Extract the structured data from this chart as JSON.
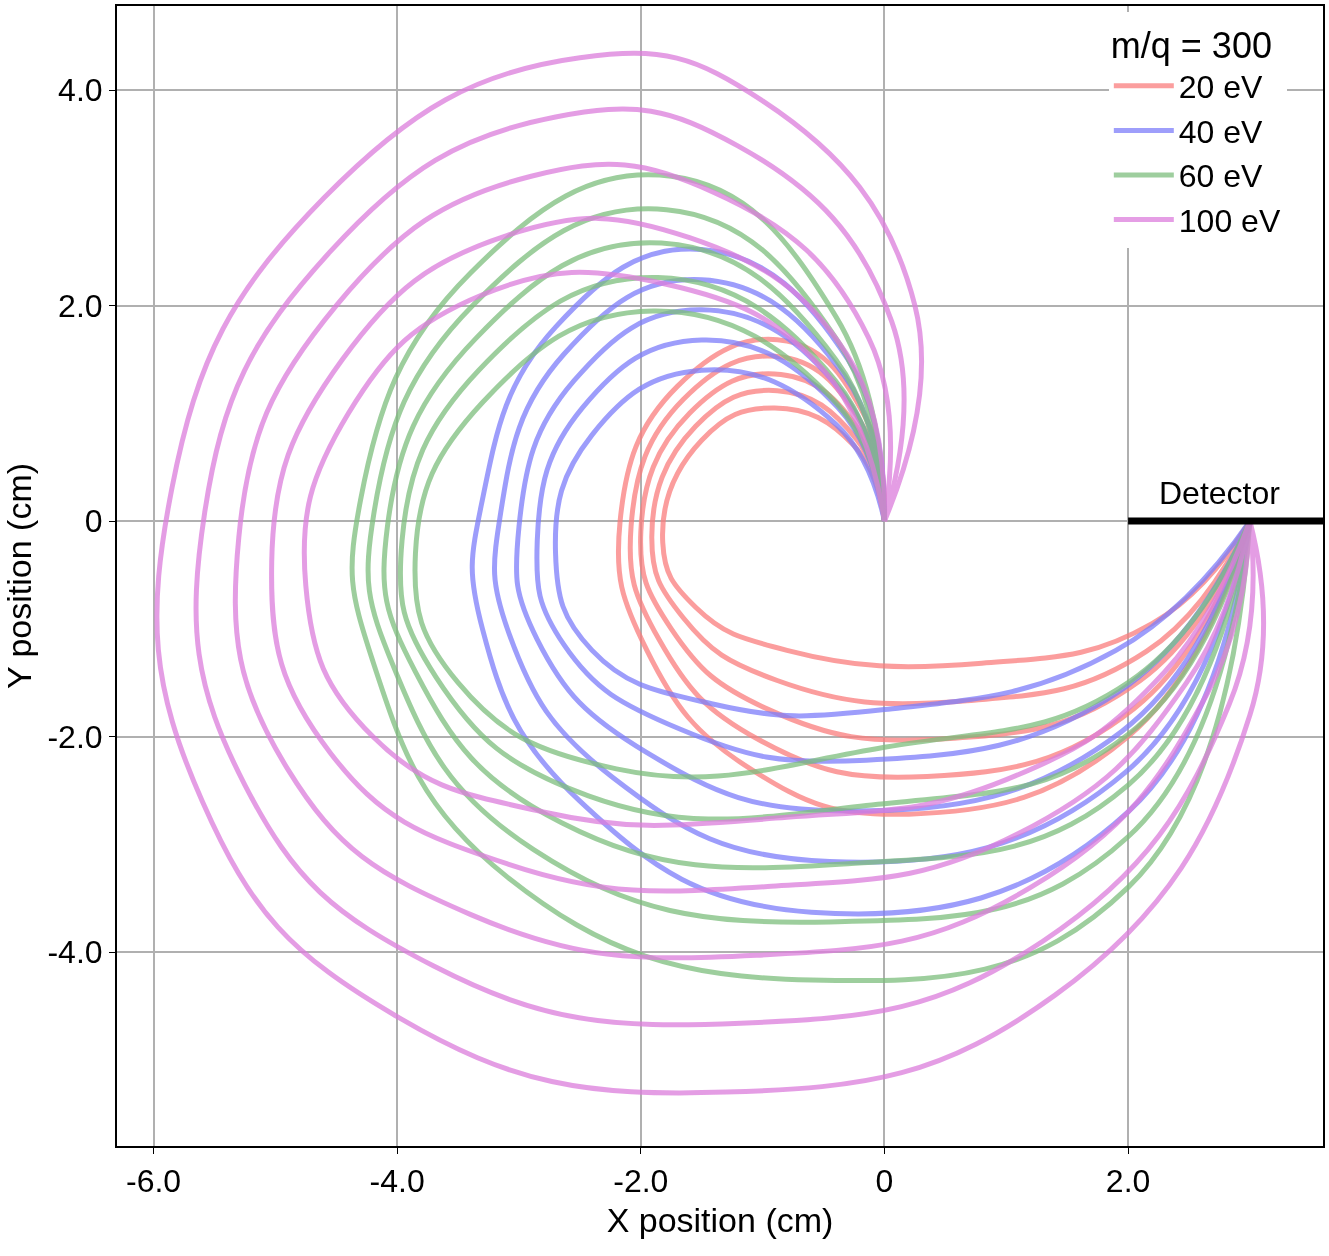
{
  "chart_data": {
    "type": "line",
    "xlabel": "X position (cm)",
    "ylabel": "Y position (cm)",
    "legend_title": "m/q = 300",
    "xlim": [
      -6.3,
      3.6
    ],
    "ylim": [
      -5.8,
      4.78
    ],
    "xticks": [
      {
        "value": -6,
        "label": "-6.0"
      },
      {
        "value": -4,
        "label": "-4.0"
      },
      {
        "value": -2,
        "label": "-2.0"
      },
      0,
      {
        "value": 2,
        "label": "2.0"
      }
    ],
    "yticks": [
      {
        "value": -4,
        "label": "-4.0"
      },
      {
        "value": -2,
        "label": "-2.0"
      },
      0,
      {
        "value": 2,
        "label": "2.0"
      },
      {
        "value": 4,
        "label": "4.0"
      }
    ],
    "grid": true,
    "legend": "top right",
    "annotations": [
      {
        "text": "Detector",
        "x": 2.75,
        "y": 0
      }
    ],
    "series": [
      {
        "name": "20 eV",
        "color": "#fa7d7d",
        "x": [
          0,
          -0.15,
          -0.8,
          -1.7,
          -2.17,
          -1.95,
          -1.1,
          0.2,
          2.0,
          3,
          null,
          0,
          -0.18,
          -0.83,
          -1.65,
          -2.08,
          -1.85,
          -1.03,
          0.35,
          2.05,
          3,
          null,
          0,
          -0.2,
          -0.85,
          -1.6,
          -2.0,
          -1.75,
          -0.95,
          0.5,
          2.1,
          3,
          null,
          0,
          -0.23,
          -0.88,
          -1.55,
          -1.91,
          -1.65,
          -0.88,
          0.65,
          2.15,
          3,
          null,
          0,
          -0.25,
          -0.9,
          -1.5,
          -1.82,
          -1.55,
          -0.8,
          0.8,
          2.2,
          3
        ],
        "values": [
          0,
          0.95,
          1.67,
          1.25,
          0,
          -1.2,
          -2.3,
          -2.72,
          -2.0,
          0,
          null,
          0,
          0.89,
          1.52,
          1.13,
          -0.05,
          -1.1,
          -2.03,
          -2.37,
          -1.74,
          0,
          null,
          0,
          0.83,
          1.36,
          1.0,
          -0.1,
          -1.0,
          -1.75,
          -2.02,
          -1.48,
          0,
          null,
          0,
          0.76,
          1.21,
          0.88,
          -0.15,
          -0.9,
          -1.48,
          -1.67,
          -1.21,
          0,
          null,
          0,
          0.7,
          1.05,
          0.75,
          -0.2,
          -0.8,
          -1.2,
          -1.32,
          -0.95,
          0
        ]
      },
      {
        "name": "40 eV",
        "color": "#7d7dfa",
        "x": [
          0,
          -0.3,
          -1.5,
          -2.7,
          -3.3,
          -3.3,
          -2.5,
          -0.6,
          2.0,
          3,
          null,
          0,
          -0.33,
          -1.5,
          -2.63,
          -3.15,
          -3.08,
          -2.23,
          -0.45,
          1.98,
          3,
          null,
          0,
          -0.35,
          -1.5,
          -2.55,
          -3.0,
          -2.85,
          -1.95,
          -0.3,
          1.95,
          3,
          null,
          0,
          -0.38,
          -1.5,
          -2.48,
          -2.85,
          -2.63,
          -1.68,
          -0.15,
          1.93,
          3,
          null,
          0,
          -0.4,
          -1.5,
          -2.4,
          -2.7,
          -2.4,
          -1.4,
          0.0,
          1.9,
          3
        ],
        "values": [
          0,
          1.5,
          2.52,
          1.8,
          0.2,
          -1.0,
          -2.6,
          -3.63,
          -2.7,
          0,
          null,
          0,
          1.35,
          2.24,
          1.55,
          0.08,
          -1.05,
          -2.38,
          -3.16,
          -2.33,
          0,
          null,
          0,
          1.2,
          1.96,
          1.3,
          -0.05,
          -1.1,
          -2.15,
          -2.69,
          -1.95,
          0,
          null,
          0,
          1.05,
          1.68,
          1.05,
          -0.18,
          -1.15,
          -1.93,
          -2.22,
          -1.58,
          0,
          null,
          0,
          0.9,
          1.4,
          0.8,
          -0.3,
          -1.2,
          -1.7,
          -1.75,
          -1.2,
          0
        ]
      },
      {
        "name": "60 eV",
        "color": "#7dbe7d",
        "x": [
          0,
          -0.4,
          -1.75,
          -3.4,
          -4.3,
          -4.2,
          -3.1,
          -0.6,
          2.0,
          3,
          null,
          0,
          -0.4,
          -1.79,
          -3.38,
          -4.19,
          -4.03,
          -2.88,
          -0.45,
          2.0,
          3,
          null,
          0,
          -0.4,
          -1.83,
          -3.35,
          -4.08,
          -3.85,
          -2.65,
          -0.3,
          2.0,
          3,
          null,
          0,
          -0.4,
          -1.86,
          -3.33,
          -3.96,
          -3.68,
          -2.43,
          -0.15,
          2.0,
          3,
          null,
          0,
          -0.4,
          -1.9,
          -3.3,
          -3.85,
          -3.5,
          -2.2,
          0.0,
          2.0,
          3
        ],
        "values": [
          0,
          1.9,
          3.2,
          2.3,
          0.2,
          -1.3,
          -3.3,
          -4.26,
          -3.4,
          0,
          null,
          0,
          1.7,
          2.89,
          2.0,
          0.08,
          -1.35,
          -3.05,
          -3.72,
          -2.93,
          0,
          null,
          0,
          1.5,
          2.58,
          1.7,
          -0.05,
          -1.4,
          -2.8,
          -3.18,
          -2.45,
          0,
          null,
          0,
          1.3,
          2.26,
          1.4,
          -0.18,
          -1.45,
          -2.55,
          -2.64,
          -1.98,
          0,
          null,
          0,
          1.1,
          1.95,
          1.1,
          -0.3,
          -1.5,
          -2.3,
          -2.1,
          -1.5,
          0
        ]
      },
      {
        "name": "100 eV",
        "color": "#dc7ddc",
        "x": [
          0,
          0.25,
          -1.0,
          -2.5,
          -4.6,
          -5.85,
          -5.6,
          -4.0,
          -1.3,
          1.4,
          3.0,
          3,
          null,
          0,
          0.06,
          -1.2,
          -2.7,
          -4.55,
          -5.58,
          -5.25,
          -3.7,
          -1.18,
          1.3,
          2.83,
          3,
          null,
          0,
          -0.13,
          -1.4,
          -2.9,
          -4.5,
          -5.3,
          -4.9,
          -3.4,
          -1.05,
          1.2,
          2.65,
          3,
          null,
          0,
          -0.31,
          -1.6,
          -3.1,
          -4.45,
          -5.03,
          -4.55,
          -3.1,
          -0.93,
          1.1,
          2.48,
          3,
          null,
          0,
          -0.5,
          -1.8,
          -3.3,
          -4.4,
          -4.75,
          -4.2,
          -2.8,
          -0.8,
          1.0,
          2.3,
          3
        ],
        "values": [
          0,
          2.0,
          3.9,
          4.3,
          3.0,
          0.3,
          -2.6,
          -4.6,
          -5.3,
          -4.4,
          -1.8,
          0,
          null,
          0,
          1.85,
          3.48,
          3.75,
          2.5,
          0.08,
          -2.45,
          -4.13,
          -4.66,
          -3.9,
          -1.7,
          0,
          null,
          0,
          1.7,
          3.05,
          3.2,
          2.0,
          -0.15,
          -2.3,
          -3.65,
          -4.03,
          -3.4,
          -1.6,
          0,
          null,
          0,
          1.55,
          2.63,
          2.65,
          1.5,
          -0.38,
          -2.15,
          -3.18,
          -3.39,
          -2.9,
          -1.5,
          0,
          null,
          0,
          1.4,
          2.2,
          2.1,
          1.0,
          -0.6,
          -2.0,
          -2.7,
          -2.75,
          -2.4,
          -1.4,
          0
        ]
      },
      {
        "color": "#000000",
        "x": [
          2,
          3.6
        ],
        "values": [
          0,
          0
        ]
      }
    ]
  }
}
